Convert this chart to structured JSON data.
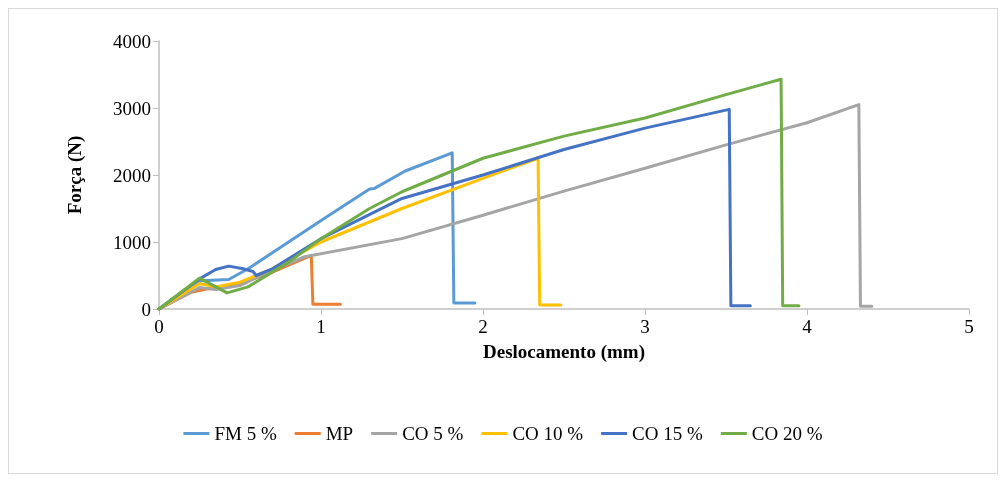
{
  "chart_data": {
    "type": "line",
    "xlabel": "Deslocamento (mm)",
    "ylabel": "Força (N)",
    "xlim": [
      0,
      5
    ],
    "xticks": [
      0,
      1,
      2,
      3,
      4,
      5
    ],
    "ylim": [
      0,
      4000
    ],
    "yticks": [
      0,
      1000,
      2000,
      3000,
      4000
    ],
    "grid": false,
    "legend": "bottom",
    "marker": "none",
    "line_style": "solid",
    "series": [
      {
        "name": "FM 5 %",
        "color": "#5b9bd5",
        "x": [
          0,
          0.15,
          0.26,
          0.43,
          0.55,
          0.8,
          1.05,
          1.3,
          1.33,
          1.52,
          1.81,
          1.82,
          1.95
        ],
        "values": [
          0,
          250,
          420,
          440,
          600,
          1000,
          1400,
          1790,
          1800,
          2060,
          2330,
          90,
          90
        ]
      },
      {
        "name": "MP",
        "color": "#ed7d31",
        "x": [
          0,
          0.2,
          0.3,
          0.5,
          0.7,
          0.94,
          0.95,
          1.12
        ],
        "values": [
          0,
          250,
          300,
          380,
          550,
          800,
          70,
          70
        ]
      },
      {
        "name": "CO 5 %",
        "color": "#a5a5a5",
        "x": [
          0,
          0.25,
          0.35,
          0.5,
          0.7,
          0.9,
          1.5,
          2,
          2.5,
          3,
          3.5,
          4,
          4.32,
          4.33,
          4.4
        ],
        "values": [
          0,
          320,
          290,
          350,
          580,
          780,
          1050,
          1400,
          1760,
          2100,
          2450,
          2780,
          3050,
          40,
          40
        ]
      },
      {
        "name": "CO 10 %",
        "color": "#ffc000",
        "x": [
          0,
          0.25,
          0.35,
          0.5,
          0.7,
          1,
          1.5,
          2,
          2.34,
          2.35,
          2.48
        ],
        "values": [
          0,
          380,
          330,
          400,
          600,
          1000,
          1500,
          1950,
          2250,
          60,
          60
        ]
      },
      {
        "name": "CO 15 %",
        "color": "#4472c4",
        "x": [
          0,
          0.25,
          0.35,
          0.43,
          0.52,
          0.58,
          0.6,
          0.7,
          1,
          1.5,
          2,
          2.5,
          3,
          3.52,
          3.53,
          3.65
        ],
        "values": [
          0,
          450,
          590,
          640,
          600,
          560,
          500,
          600,
          1050,
          1650,
          2000,
          2380,
          2700,
          2980,
          50,
          50
        ]
      },
      {
        "name": "CO 20 %",
        "color": "#70ad47",
        "x": [
          0,
          0.25,
          0.42,
          0.55,
          0.8,
          1,
          1.3,
          1.5,
          2,
          2.5,
          3,
          3.5,
          3.84,
          3.85,
          3.95
        ],
        "values": [
          0,
          460,
          240,
          330,
          700,
          1050,
          1500,
          1750,
          2250,
          2580,
          2850,
          3200,
          3430,
          50,
          50
        ]
      }
    ]
  }
}
